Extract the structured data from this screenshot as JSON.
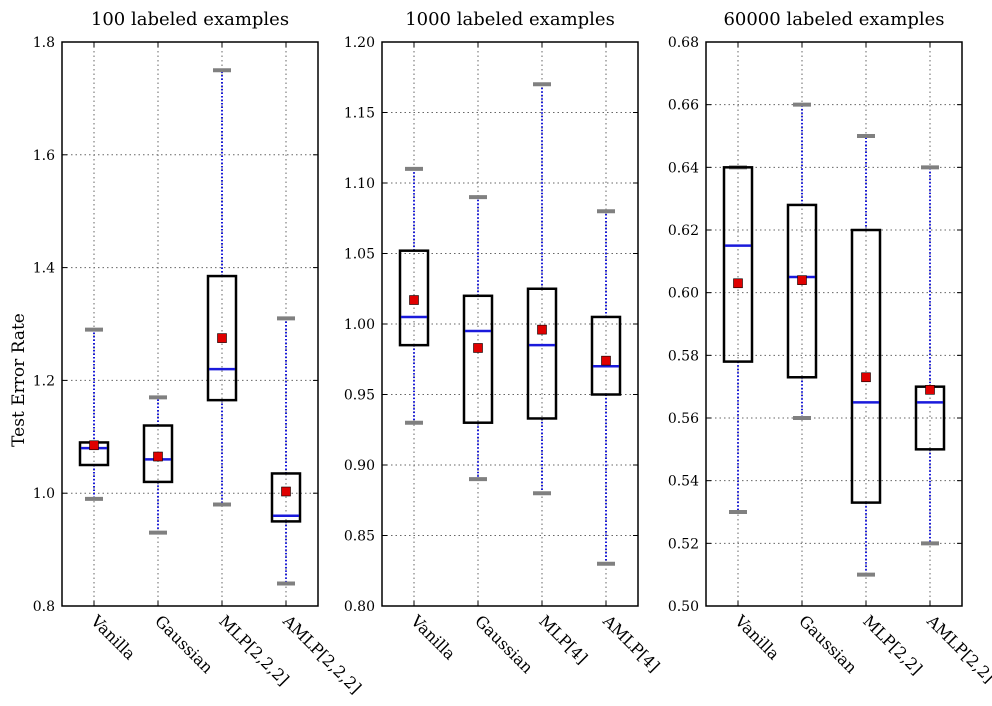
{
  "figure": {
    "ylabel": "Test Error Rate"
  },
  "chart_data": [
    {
      "type": "box",
      "title": "100 labeled examples",
      "ylabel": "Test Error Rate",
      "ylim": [
        0.8,
        1.8
      ],
      "yticks": [
        0.8,
        1.0,
        1.2,
        1.4,
        1.6,
        1.8
      ],
      "ytick_labels": [
        "0.8",
        "1.0",
        "1.2",
        "1.4",
        "1.6",
        "1.8"
      ],
      "grid": true,
      "categories": [
        "Vanilla",
        "Gaussian",
        "MLP[2,2,2]",
        "AMLP[2,2,2]"
      ],
      "boxes": [
        {
          "whisker_low": 0.99,
          "q1": 1.05,
          "median": 1.08,
          "q3": 1.09,
          "whisker_high": 1.29,
          "mean": 1.085
        },
        {
          "whisker_low": 0.93,
          "q1": 1.02,
          "median": 1.06,
          "q3": 1.12,
          "whisker_high": 1.17,
          "mean": 1.065
        },
        {
          "whisker_low": 0.98,
          "q1": 1.165,
          "median": 1.22,
          "q3": 1.385,
          "whisker_high": 1.75,
          "mean": 1.275
        },
        {
          "whisker_low": 0.84,
          "q1": 0.95,
          "median": 0.96,
          "q3": 1.035,
          "whisker_high": 1.31,
          "mean": 1.003
        }
      ]
    },
    {
      "type": "box",
      "title": "1000 labeled examples",
      "ylim": [
        0.8,
        1.2
      ],
      "yticks": [
        0.8,
        0.85,
        0.9,
        0.95,
        1.0,
        1.05,
        1.1,
        1.15,
        1.2
      ],
      "ytick_labels": [
        "0.80",
        "0.85",
        "0.90",
        "0.95",
        "1.00",
        "1.05",
        "1.10",
        "1.15",
        "1.20"
      ],
      "grid": true,
      "categories": [
        "Vanilla",
        "Gaussian",
        "MLP[4]",
        "AMLP[4]"
      ],
      "boxes": [
        {
          "whisker_low": 0.93,
          "q1": 0.985,
          "median": 1.005,
          "q3": 1.052,
          "whisker_high": 1.11,
          "mean": 1.017
        },
        {
          "whisker_low": 0.89,
          "q1": 0.93,
          "median": 0.995,
          "q3": 1.02,
          "whisker_high": 1.09,
          "mean": 0.983
        },
        {
          "whisker_low": 0.88,
          "q1": 0.933,
          "median": 0.985,
          "q3": 1.025,
          "whisker_high": 1.17,
          "mean": 0.996
        },
        {
          "whisker_low": 0.83,
          "q1": 0.95,
          "median": 0.97,
          "q3": 1.005,
          "whisker_high": 1.08,
          "mean": 0.974
        }
      ]
    },
    {
      "type": "box",
      "title": "60000 labeled examples",
      "ylim": [
        0.5,
        0.68
      ],
      "yticks": [
        0.5,
        0.52,
        0.54,
        0.56,
        0.58,
        0.6,
        0.62,
        0.64,
        0.66,
        0.68
      ],
      "ytick_labels": [
        "0.50",
        "0.52",
        "0.54",
        "0.56",
        "0.58",
        "0.60",
        "0.62",
        "0.64",
        "0.66",
        "0.68"
      ],
      "grid": true,
      "categories": [
        "Vanilla",
        "Gaussian",
        "MLP[2,2]",
        "AMLP[2,2]"
      ],
      "boxes": [
        {
          "whisker_low": 0.53,
          "q1": 0.578,
          "median": 0.615,
          "q3": 0.64,
          "whisker_high": 0.64,
          "mean": 0.603
        },
        {
          "whisker_low": 0.56,
          "q1": 0.573,
          "median": 0.605,
          "q3": 0.628,
          "whisker_high": 0.66,
          "mean": 0.604
        },
        {
          "whisker_low": 0.51,
          "q1": 0.533,
          "median": 0.565,
          "q3": 0.62,
          "whisker_high": 0.65,
          "mean": 0.573
        },
        {
          "whisker_low": 0.52,
          "q1": 0.55,
          "median": 0.565,
          "q3": 0.57,
          "whisker_high": 0.64,
          "mean": 0.569
        }
      ]
    }
  ],
  "colors": {
    "box": "#000000",
    "median": "#1a1adb",
    "whisker": "#1a1adb",
    "cap": "#808080",
    "mean": "#e00000",
    "grid": "#666666"
  }
}
